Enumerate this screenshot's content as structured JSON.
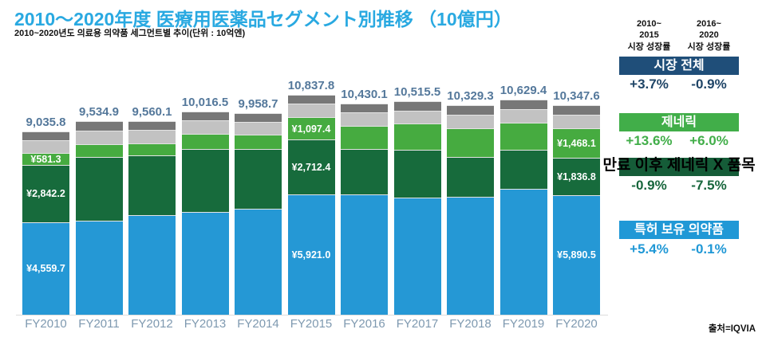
{
  "header": {
    "title": "2010～2020年度 医療用医薬品セグメント別推移 （10億円）",
    "subtitle": "2010~2020년도 의료용 의약품 세그먼트별 추이(단위 : 10억엔)"
  },
  "chart_data": {
    "type": "bar",
    "stacked": true,
    "unit": "10億円",
    "categories": [
      "FY2010",
      "FY2011",
      "FY2012",
      "FY2013",
      "FY2014",
      "FY2015",
      "FY2016",
      "FY2017",
      "FY2018",
      "FY2019",
      "FY2020"
    ],
    "totals": [
      9035.8,
      9534.9,
      9560.1,
      10016.5,
      9958.7,
      10837.8,
      10430.1,
      10515.5,
      10329.3,
      10629.4,
      10347.6
    ],
    "total_labels": [
      "9,035.8",
      "9,534.9",
      "9,560.1",
      "10,016.5",
      "9,958.7",
      "10,837.8",
      "10,430.1",
      "10,515.5",
      "10,329.3",
      "10,629.4",
      "10,347.6"
    ],
    "series": [
      {
        "key": "patented",
        "name": "특허 보유 의약품",
        "values": [
          4559.7,
          4630,
          4900,
          5070,
          5230,
          5921.0,
          5940,
          5790,
          5810,
          6210,
          5890.5
        ],
        "labels": [
          "¥4,559.7",
          null,
          null,
          null,
          null,
          "¥5,921.0",
          null,
          null,
          null,
          null,
          "¥5,890.5"
        ]
      },
      {
        "key": "off-patent-no-generic",
        "name": "만료 이후 제네릭 X 품목",
        "values": [
          2842.2,
          3150,
          2960,
          3100,
          2950,
          2712.4,
          2230,
          2350,
          1990,
          1915,
          1836.8
        ],
        "labels": [
          "¥2,842.2",
          null,
          null,
          null,
          null,
          "¥2,712.4",
          null,
          null,
          null,
          null,
          "¥1,836.8"
        ]
      },
      {
        "key": "generic",
        "name": "제네릭",
        "values": [
          581.3,
          630,
          590,
          750,
          700,
          1097.4,
          1130,
          1290,
          1400,
          1330,
          1468.1
        ],
        "labels": [
          "¥581.3",
          null,
          null,
          null,
          null,
          "¥1,097.4",
          null,
          null,
          null,
          null,
          "¥1,468.1"
        ]
      },
      {
        "key": "unlabeled-light-gray",
        "name": "unlabeled-light-gray-segment",
        "values": [
          630,
          680,
          670,
          660,
          650,
          670,
          690,
          640,
          660,
          700,
          672
        ],
        "labels": [
          null,
          null,
          null,
          null,
          null,
          null,
          null,
          null,
          null,
          null,
          null
        ]
      },
      {
        "key": "unlabeled-dark-gray",
        "name": "unlabeled-dark-gray-segment",
        "values": [
          422.6,
          444.9,
          440.1,
          436.5,
          428.7,
          437.0,
          440.1,
          445.5,
          469.3,
          474.4,
          480.2
        ],
        "labels": [
          null,
          null,
          null,
          null,
          null,
          null,
          null,
          null,
          null,
          null,
          null
        ]
      }
    ],
    "ylim": [
      0,
      11000
    ],
    "grid": false,
    "legend_position": "right-panel"
  },
  "panel": {
    "col_headers": [
      "2010~\n2015\n시장 성장률",
      "2016~\n2020\n시장 성장률"
    ],
    "rows": [
      {
        "label": "시장 전체",
        "values": [
          "+3.7%",
          "-0.9%"
        ]
      },
      {
        "label": "제네릭",
        "values": [
          "+13.6%",
          "+6.0%"
        ]
      },
      {
        "label": "만료 이후 제네릭 X 품목",
        "values": [
          "-0.9%",
          "-7.5%"
        ]
      },
      {
        "label": "특허 보유 의약품",
        "values": [
          "+5.4%",
          "-0.1%"
        ]
      }
    ]
  },
  "source": "출처=IQVIA",
  "colors": {
    "title": "#29A9E1",
    "total_label": "#54789B",
    "axis_label": "#7E99B0",
    "segments": [
      "#2598D5",
      "#176B3C",
      "#46AB40",
      "#C2C2C2",
      "#777777"
    ],
    "navy": "#1F4E79",
    "green": "#41AE49",
    "dark_green": "#155C38",
    "blue": "#2098D6",
    "value_navy": "#1F4567",
    "value_dark_green": "#17663C"
  }
}
